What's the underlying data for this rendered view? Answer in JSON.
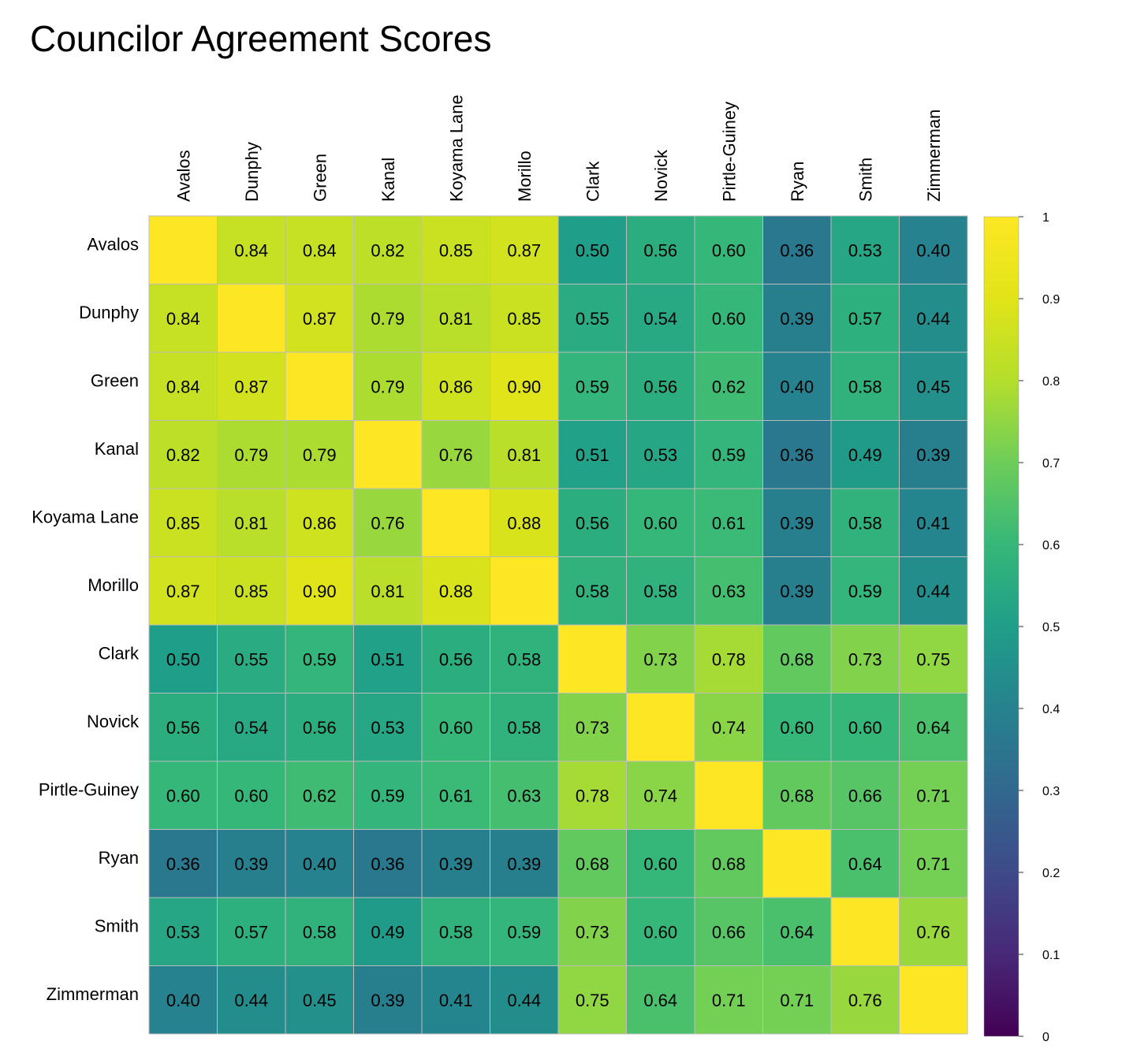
{
  "chart_data": {
    "type": "heatmap",
    "title": "Councilor Agreement Scores",
    "labels": [
      "Avalos",
      "Dunphy",
      "Green",
      "Kanal",
      "Koyama Lane",
      "Morillo",
      "Clark",
      "Novick",
      "Pirtle-Guiney",
      "Ryan",
      "Smith",
      "Zimmerman"
    ],
    "values": [
      [
        1.0,
        0.84,
        0.84,
        0.82,
        0.85,
        0.87,
        0.5,
        0.56,
        0.6,
        0.36,
        0.53,
        0.4
      ],
      [
        0.84,
        1.0,
        0.87,
        0.79,
        0.81,
        0.85,
        0.55,
        0.54,
        0.6,
        0.39,
        0.57,
        0.44
      ],
      [
        0.84,
        0.87,
        1.0,
        0.79,
        0.86,
        0.9,
        0.59,
        0.56,
        0.62,
        0.4,
        0.58,
        0.45
      ],
      [
        0.82,
        0.79,
        0.79,
        1.0,
        0.76,
        0.81,
        0.51,
        0.53,
        0.59,
        0.36,
        0.49,
        0.39
      ],
      [
        0.85,
        0.81,
        0.86,
        0.76,
        1.0,
        0.88,
        0.56,
        0.6,
        0.61,
        0.39,
        0.58,
        0.41
      ],
      [
        0.87,
        0.85,
        0.9,
        0.81,
        0.88,
        1.0,
        0.58,
        0.58,
        0.63,
        0.39,
        0.59,
        0.44
      ],
      [
        0.5,
        0.55,
        0.59,
        0.51,
        0.56,
        0.58,
        1.0,
        0.73,
        0.78,
        0.68,
        0.73,
        0.75
      ],
      [
        0.56,
        0.54,
        0.56,
        0.53,
        0.6,
        0.58,
        0.73,
        1.0,
        0.74,
        0.6,
        0.6,
        0.64
      ],
      [
        0.6,
        0.6,
        0.62,
        0.59,
        0.61,
        0.63,
        0.78,
        0.74,
        1.0,
        0.68,
        0.66,
        0.71
      ],
      [
        0.36,
        0.39,
        0.4,
        0.36,
        0.39,
        0.39,
        0.68,
        0.6,
        0.68,
        1.0,
        0.64,
        0.71
      ],
      [
        0.53,
        0.57,
        0.58,
        0.49,
        0.58,
        0.59,
        0.73,
        0.6,
        0.66,
        0.64,
        1.0,
        0.76
      ],
      [
        0.4,
        0.44,
        0.45,
        0.39,
        0.41,
        0.44,
        0.75,
        0.64,
        0.71,
        0.71,
        0.76,
        1.0
      ]
    ],
    "diagonal_labels_shown": false,
    "color_scale": "viridis",
    "value_range": [
      0,
      1
    ],
    "colorbar_ticks": [
      "0",
      "0.1",
      "0.2",
      "0.3",
      "0.4",
      "0.5",
      "0.6",
      "0.7",
      "0.8",
      "0.9",
      "1"
    ],
    "legend_placement": "right"
  }
}
